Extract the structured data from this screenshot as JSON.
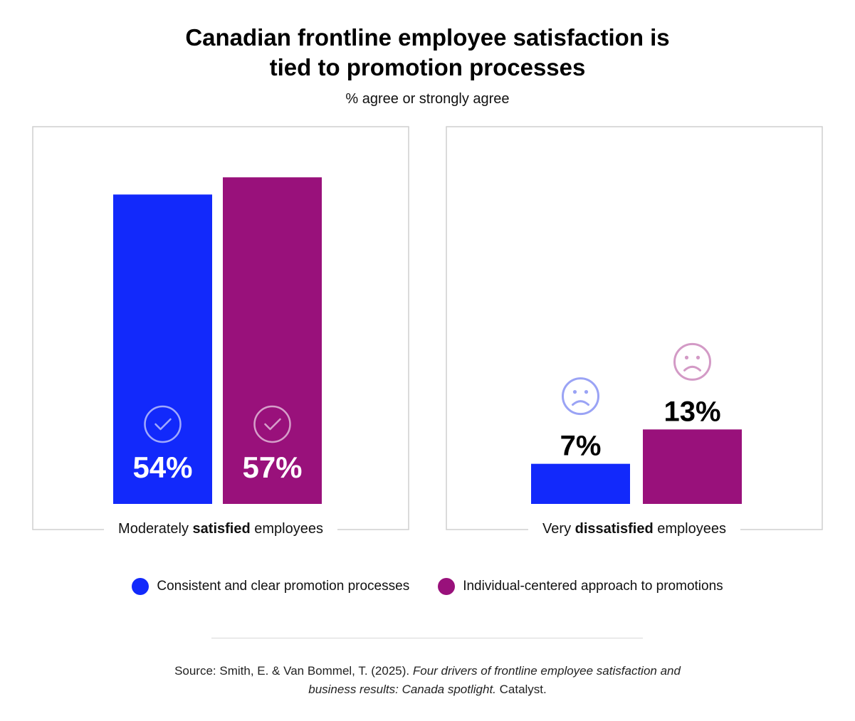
{
  "title": {
    "line1": "Canadian frontline employee satisfaction is",
    "line2": "tied to promotion processes"
  },
  "subtitle": "% agree or strongly agree",
  "colors": {
    "series1": "#1229fb",
    "series2": "#99117b",
    "panel_border": "#cfcfcf",
    "sad_icon_1": "#9aa3f5",
    "sad_icon_2": "#d39ac6"
  },
  "chart_data": [
    {
      "type": "bar",
      "category_label": {
        "pre": "Moderately ",
        "bold": "satisfied",
        "post": " employees"
      },
      "series": [
        {
          "name": "Consistent and clear promotion processes",
          "value": 54,
          "label": "54%",
          "icon": "check-circle-icon"
        },
        {
          "name": "Individual-centered approach to promotions",
          "value": 57,
          "label": "57%",
          "icon": "check-circle-icon"
        }
      ],
      "ylim": [
        0,
        60
      ]
    },
    {
      "type": "bar",
      "category_label": {
        "pre": "Very ",
        "bold": "dissatisfied",
        "post": " employees"
      },
      "series": [
        {
          "name": "Consistent and clear promotion processes",
          "value": 7,
          "label": "7%",
          "icon": "sad-face-icon"
        },
        {
          "name": "Individual-centered approach to promotions",
          "value": 13,
          "label": "13%",
          "icon": "sad-face-icon"
        }
      ],
      "ylim": [
        0,
        60
      ]
    }
  ],
  "legend": [
    {
      "label": "Consistent and clear promotion processes"
    },
    {
      "label": "Individual-centered approach to promotions"
    }
  ],
  "source": {
    "prefix": "Source: Smith, E. & Van Bommel, T. (2025). ",
    "title_part1": "Four drivers of frontline employee satisfaction and",
    "title_part2": "business results: Canada spotlight.",
    "suffix": " Catalyst."
  }
}
